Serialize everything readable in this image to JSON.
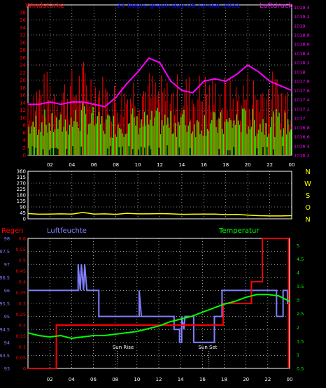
{
  "colors": {
    "background": "#000000",
    "wind_gust": "#ff0000",
    "wind_mean": "#00ff00",
    "wind_base": "#002200",
    "pressure": "#ff00ff",
    "direction": "#ffff00",
    "humidity": "#8080ff",
    "rain": "#ff0000",
    "temperature": "#00ff00",
    "grid": "#ffffff",
    "title": "#0000ff",
    "dir_labels": "#ffff00"
  },
  "top": {
    "title": "24 hours graph day  05 Januar 2021",
    "left_label": "Windstärke",
    "right_label": "Luftdruck"
  },
  "middle": {
    "dir_labels": [
      "N",
      "W",
      "S",
      "O",
      "N"
    ]
  },
  "bottom": {
    "rain_label": "Regen",
    "humidity_label": "Luftfeuchte",
    "temp_label": "Temperatur",
    "sunrise_label": "Sun Rise",
    "sunset_label": "Sun Set"
  },
  "chart_data": [
    {
      "type": "bar",
      "name": "wind",
      "ylabel": "Windstärke",
      "ylim": [
        0,
        40
      ],
      "y_ticks": [
        "0",
        "2",
        "4",
        "6",
        "8",
        "10",
        "12",
        "14",
        "16",
        "18",
        "20",
        "22",
        "24",
        "26",
        "28",
        "30",
        "32",
        "34",
        "36",
        "38"
      ],
      "y2label": "Luftdruck",
      "y2lim": [
        1016.2,
        1019.45
      ],
      "y2_ticks": [
        "1016.2",
        "1016.4",
        "1016.6",
        "1016.8",
        "1017",
        "1017.2",
        "1017.4",
        "1017.6",
        "1017.8",
        "1018",
        "1018.2",
        "1018.4",
        "1018.6",
        "1018.8",
        "1019",
        "1019.2",
        "1019.4"
      ],
      "x_ticks": [
        "02",
        "04",
        "06",
        "08",
        "10",
        "12",
        "14",
        "16",
        "18",
        "20",
        "22",
        "00"
      ],
      "hours": [
        0,
        1,
        2,
        3,
        4,
        5,
        6,
        7,
        8,
        9,
        10,
        11,
        12,
        13,
        14,
        15,
        16,
        17,
        18,
        19,
        20,
        21,
        22,
        23,
        24
      ],
      "gust": [
        14,
        15,
        16,
        15,
        16,
        18,
        17,
        15,
        14,
        15,
        17,
        16,
        15,
        14,
        16,
        15,
        16,
        15,
        15,
        14,
        16,
        15,
        16,
        15,
        14
      ],
      "mean": [
        8,
        10,
        9,
        9,
        10,
        11,
        10,
        9,
        9,
        10,
        10,
        9,
        10,
        9,
        10,
        9,
        10,
        9,
        9,
        10,
        10,
        9,
        10,
        9,
        9
      ],
      "pressure": [
        1017.3,
        1017.3,
        1017.35,
        1017.3,
        1017.35,
        1017.35,
        1017.3,
        1017.25,
        1017.45,
        1017.75,
        1018.0,
        1018.3,
        1018.2,
        1017.8,
        1017.6,
        1017.55,
        1017.8,
        1017.85,
        1017.8,
        1017.95,
        1018.15,
        1018.0,
        1017.8,
        1017.7,
        1017.6
      ]
    },
    {
      "type": "line",
      "name": "direction",
      "ylim": [
        0,
        360
      ],
      "y_ticks": [
        "0",
        "45",
        "90",
        "135",
        "180",
        "225",
        "270",
        "315",
        "360"
      ],
      "hours": [
        0,
        1,
        2,
        3,
        4,
        5,
        6,
        7,
        8,
        9,
        10,
        11,
        12,
        13,
        14,
        15,
        16,
        17,
        18,
        19,
        20,
        21,
        22,
        23,
        24
      ],
      "values": [
        40,
        35,
        36,
        38,
        36,
        48,
        36,
        38,
        34,
        42,
        38,
        38,
        40,
        38,
        34,
        35,
        36,
        36,
        32,
        34,
        28,
        24,
        22,
        22,
        24
      ]
    },
    {
      "type": "line",
      "name": "humidity-rain-temperature",
      "humidity_ticks": [
        "93",
        "93.5",
        "94",
        "94.5",
        "95",
        "95.5",
        "96",
        "96.5",
        "97",
        "97.5",
        "98"
      ],
      "rain_ticks": [
        "0",
        "0.05",
        "0.1",
        "0.15",
        "0.2",
        "0.25",
        "0.3",
        "0.35",
        "0.4",
        "0.45",
        "0.5",
        "0.55",
        "0.6"
      ],
      "temp_ticks": [
        "0.5",
        "1",
        "1.5",
        "2",
        "2.5",
        "3",
        "3.5",
        "4",
        "4.5",
        "5"
      ],
      "x_ticks": [
        "02",
        "04",
        "06",
        "08",
        "10",
        "12",
        "14",
        "16",
        "18",
        "20",
        "22",
        "00"
      ],
      "humidity_steps": [
        [
          0,
          96
        ],
        [
          4.6,
          96
        ],
        [
          4.6,
          97
        ],
        [
          4.8,
          96
        ],
        [
          4.9,
          97
        ],
        [
          5.1,
          96
        ],
        [
          5.2,
          97
        ],
        [
          5.4,
          96
        ],
        [
          6.5,
          96
        ],
        [
          6.5,
          95
        ],
        [
          10.2,
          95
        ],
        [
          10.2,
          96
        ],
        [
          10.4,
          95
        ],
        [
          13.4,
          95
        ],
        [
          13.4,
          94.5
        ],
        [
          13.9,
          94.5
        ],
        [
          13.9,
          94
        ],
        [
          14.1,
          94
        ],
        [
          14.1,
          95
        ],
        [
          14.3,
          94.5
        ],
        [
          14.4,
          95
        ],
        [
          15.2,
          95
        ],
        [
          15.2,
          94
        ],
        [
          17.1,
          94
        ],
        [
          17.1,
          95
        ],
        [
          17.8,
          95
        ],
        [
          17.8,
          96
        ],
        [
          22.8,
          96
        ],
        [
          22.8,
          95
        ],
        [
          23.4,
          95
        ],
        [
          23.4,
          96
        ],
        [
          23.8,
          96
        ],
        [
          23.8,
          95.5
        ],
        [
          24,
          95.5
        ]
      ],
      "rain_steps": [
        [
          0,
          0
        ],
        [
          2.6,
          0
        ],
        [
          2.6,
          0.2
        ],
        [
          17.9,
          0.2
        ],
        [
          17.9,
          0.3
        ],
        [
          20.5,
          0.3
        ],
        [
          20.5,
          0.4
        ],
        [
          21.5,
          0.4
        ],
        [
          21.5,
          0.6
        ],
        [
          23.9,
          0.6
        ],
        [
          23.9,
          0
        ]
      ],
      "temperature": [
        [
          0,
          1.8
        ],
        [
          1,
          1.7
        ],
        [
          2,
          1.65
        ],
        [
          3,
          1.7
        ],
        [
          4,
          1.6
        ],
        [
          5,
          1.65
        ],
        [
          6,
          1.7
        ],
        [
          7,
          1.7
        ],
        [
          8,
          1.75
        ],
        [
          9,
          1.8
        ],
        [
          10,
          1.85
        ],
        [
          11,
          1.95
        ],
        [
          12,
          2.05
        ],
        [
          13,
          2.2
        ],
        [
          14,
          2.3
        ],
        [
          15,
          2.4
        ],
        [
          16,
          2.55
        ],
        [
          17,
          2.7
        ],
        [
          18,
          2.85
        ],
        [
          19,
          2.95
        ],
        [
          20,
          3.1
        ],
        [
          21,
          3.2
        ],
        [
          22,
          3.2
        ],
        [
          23,
          3.15
        ],
        [
          24,
          2.95
        ]
      ],
      "sunrise_hour": 8.2,
      "sunset_hour": 16.6
    }
  ]
}
